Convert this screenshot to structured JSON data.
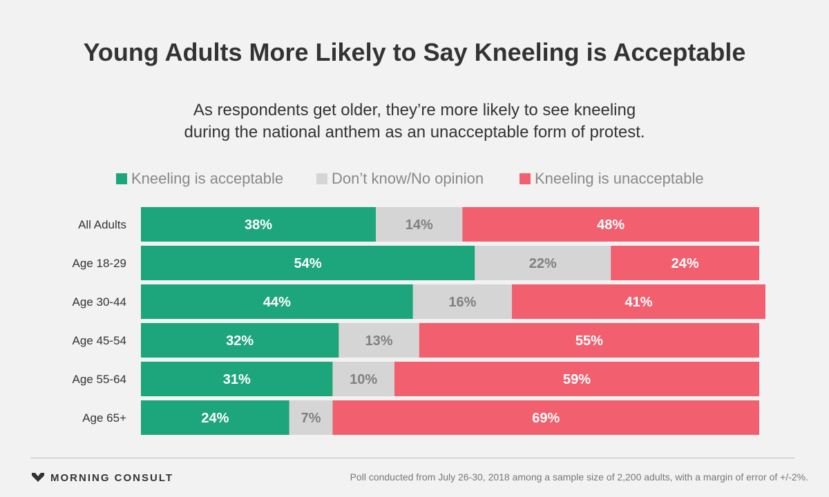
{
  "header": {
    "title": "Young Adults More Likely to Say Kneeling is Acceptable",
    "subtitle_line1": "As respondents get older, they’re more likely to see kneeling",
    "subtitle_line2": "during the national anthem as an unacceptable form of protest."
  },
  "legend": {
    "items": [
      {
        "label": "Kneeling is acceptable",
        "color": "#1da57b"
      },
      {
        "label": "Don’t know/No opinion",
        "color": "#d5d5d5"
      },
      {
        "label": "Kneeling is unacceptable",
        "color": "#f25f6e"
      }
    ]
  },
  "chart_data": {
    "type": "bar",
    "orientation": "horizontal",
    "stacked": true,
    "categories": [
      "All Adults",
      "Age 18-29",
      "Age 30-44",
      "Age 45-54",
      "Age 55-64",
      "Age 65+"
    ],
    "series": [
      {
        "name": "Kneeling is acceptable",
        "values": [
          38,
          54,
          44,
          32,
          31,
          24
        ],
        "color": "#1da57b",
        "label_color": "#ffffff"
      },
      {
        "name": "Don’t know/No opinion",
        "values": [
          14,
          22,
          16,
          13,
          10,
          7
        ],
        "color": "#d5d5d5",
        "label_color": "#808080"
      },
      {
        "name": "Kneeling is unacceptable",
        "values": [
          48,
          24,
          41,
          55,
          59,
          69
        ],
        "color": "#f25f6e",
        "label_color": "#ffffff"
      }
    ],
    "value_suffix": "%",
    "xlim": [
      0,
      100
    ],
    "grid": false,
    "legend_position": "top"
  },
  "footer": {
    "brand": "MORNING CONSULT",
    "note": "Poll conducted from July 26-30, 2018 among a sample size of 2,200 adults, with a margin of error of +/-2%."
  }
}
